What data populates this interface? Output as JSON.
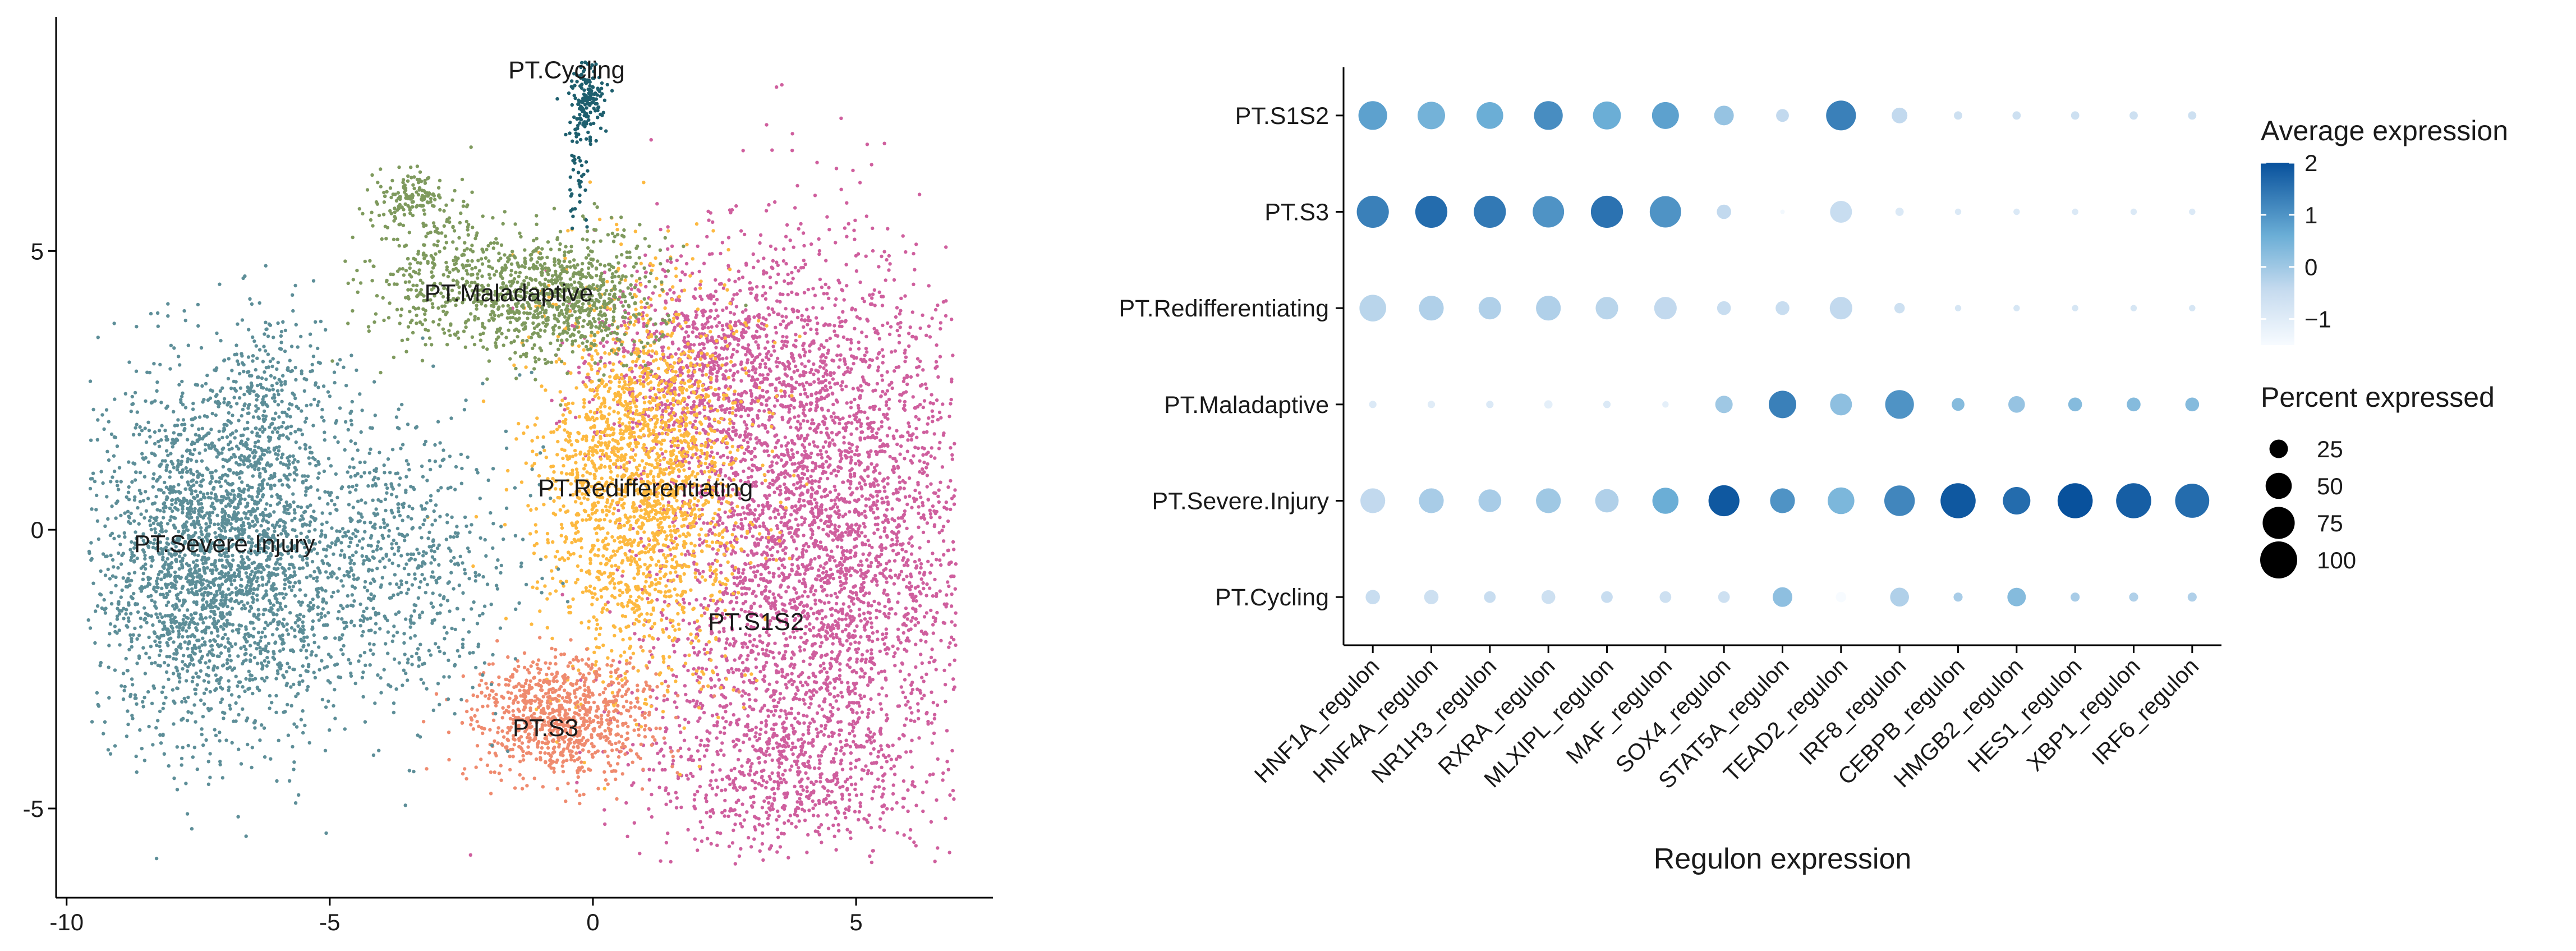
{
  "figure": {
    "umap": {
      "type": "scatter",
      "xticks": [
        -10,
        -5,
        0,
        5
      ],
      "yticks": [
        -5,
        0,
        5
      ],
      "xlim": [
        -10.2,
        7.6
      ],
      "ylim": [
        -6.6,
        9.2
      ],
      "clusters": [
        {
          "name": "PT.Cycling",
          "color": "#1e5f6e",
          "label_x": -0.5,
          "label_y": 8.1
        },
        {
          "name": "PT.Maladaptive",
          "color": "#7f9a5e",
          "label_x": -1.6,
          "label_y": 4.1
        },
        {
          "name": "PT.Redifferentiating",
          "color": "#fdb940",
          "label_x": 1.0,
          "label_y": 0.6
        },
        {
          "name": "PT.Severe.Injury",
          "color": "#5d8e98",
          "label_x": -7.0,
          "label_y": -0.4
        },
        {
          "name": "PT.S1S2",
          "color": "#cf5f9e",
          "label_x": 3.1,
          "label_y": -1.8
        },
        {
          "name": "PT.S3",
          "color": "#ef8b6f",
          "label_x": -0.9,
          "label_y": -3.7
        }
      ]
    },
    "dotplot": {
      "type": "dotplot",
      "xlabel": "Regulon expression",
      "regulons": [
        "HNF1A_regulon",
        "HNF4A_regulon",
        "NR1H3_regulon",
        "RXRA_regulon",
        "MLXIPL_regulon",
        "MAF_regulon",
        "SOX4_regulon",
        "STAT5A_regulon",
        "TEAD2_regulon",
        "IRF8_regulon",
        "CEBPB_regulon",
        "HMGB2_regulon",
        "HES1_regulon",
        "XBP1_regulon",
        "IRF6_regulon"
      ],
      "cell_types": [
        "PT.S1S2",
        "PT.S3",
        "PT.Redifferentiating",
        "PT.Maladaptive",
        "PT.Severe.Injury",
        "PT.Cycling"
      ],
      "avg_expression": [
        [
          0.8,
          0.5,
          0.6,
          1.1,
          0.6,
          0.8,
          0.1,
          -0.4,
          1.3,
          -0.4,
          -0.6,
          -0.6,
          -0.6,
          -0.6,
          -0.6
        ],
        [
          1.3,
          1.6,
          1.4,
          1.0,
          1.5,
          1.0,
          -0.4,
          -1.4,
          -0.5,
          -0.9,
          -0.9,
          -0.9,
          -0.9,
          -0.9,
          -0.9
        ],
        [
          -0.3,
          -0.2,
          -0.2,
          -0.2,
          -0.3,
          -0.4,
          -0.5,
          -0.5,
          -0.4,
          -0.6,
          -0.8,
          -0.8,
          -0.8,
          -0.8,
          -0.8
        ],
        [
          -0.9,
          -1.0,
          -0.9,
          -1.1,
          -0.9,
          -1.1,
          0.0,
          1.3,
          0.2,
          1.0,
          0.3,
          0.1,
          0.3,
          0.3,
          0.3
        ],
        [
          -0.4,
          -0.1,
          -0.1,
          0.0,
          -0.2,
          0.6,
          1.9,
          1.0,
          0.4,
          1.2,
          1.9,
          1.6,
          2.0,
          1.8,
          1.6
        ],
        [
          -0.5,
          -0.6,
          -0.5,
          -0.6,
          -0.5,
          -0.6,
          -0.6,
          0.2,
          -1.5,
          -0.2,
          -0.1,
          0.3,
          -0.1,
          -0.2,
          -0.2
        ]
      ],
      "pct_expressed": [
        [
          60,
          55,
          52,
          60,
          57,
          53,
          28,
          12,
          65,
          18,
          5,
          5,
          5,
          5,
          5
        ],
        [
          75,
          75,
          75,
          72,
          75,
          72,
          15,
          1,
          35,
          5,
          3,
          3,
          3,
          3,
          3
        ],
        [
          52,
          45,
          37,
          45,
          37,
          37,
          14,
          14,
          37,
          8,
          3,
          3,
          3,
          3,
          3
        ],
        [
          4,
          4,
          4,
          5,
          4,
          3,
          22,
          55,
          35,
          60,
          12,
          20,
          14,
          14,
          14
        ],
        [
          45,
          45,
          38,
          45,
          40,
          50,
          70,
          45,
          52,
          68,
          90,
          55,
          90,
          90,
          85
        ],
        [
          15,
          15,
          10,
          14,
          10,
          10,
          10,
          28,
          8,
          26,
          6,
          25,
          6,
          6,
          6
        ]
      ],
      "legend": {
        "color_title": "Average expression",
        "color_ticks": [
          2,
          1,
          0,
          -1
        ],
        "color_range": [
          -1.5,
          2.0
        ],
        "size_title": "Percent expressed",
        "size_ticks": [
          25,
          50,
          75,
          100
        ]
      }
    }
  }
}
